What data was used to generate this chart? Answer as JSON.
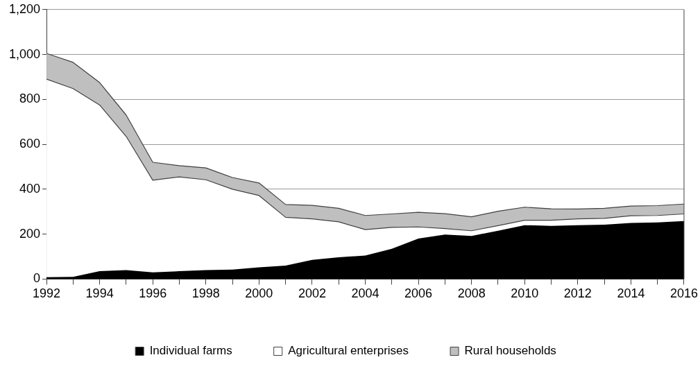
{
  "chart_data": {
    "type": "area",
    "stacked": true,
    "x": [
      1992,
      1993,
      1994,
      1995,
      1996,
      1997,
      1998,
      1999,
      2000,
      2001,
      2002,
      2003,
      2004,
      2005,
      2006,
      2007,
      2008,
      2009,
      2010,
      2011,
      2012,
      2013,
      2014,
      2015,
      2016
    ],
    "series": [
      {
        "name": "Individual farms",
        "color": "#000000",
        "values": [
          8,
          10,
          35,
          40,
          30,
          35,
          40,
          42,
          52,
          60,
          85,
          97,
          105,
          135,
          180,
          198,
          192,
          215,
          240,
          237,
          240,
          242,
          250,
          252,
          258
        ]
      },
      {
        "name": "Agricultural enterprises",
        "color": "#ffffff",
        "values": [
          882,
          838,
          740,
          595,
          410,
          420,
          402,
          358,
          320,
          215,
          183,
          158,
          115,
          95,
          52,
          27,
          23,
          23,
          22,
          25,
          28,
          28,
          32,
          31,
          32
        ]
      },
      {
        "name": "Rural households",
        "color": "#bfbfbf",
        "values": [
          115,
          117,
          100,
          95,
          80,
          50,
          53,
          52,
          56,
          57,
          60,
          60,
          63,
          60,
          65,
          66,
          62,
          64,
          58,
          51,
          44,
          45,
          43,
          44,
          44
        ]
      }
    ],
    "xlim": [
      1992,
      2016
    ],
    "xticks": [
      1992,
      {
        "value": 1993,
        "label": null
      },
      1994,
      {
        "value": 1995,
        "label": null
      },
      1996,
      {
        "value": 1997,
        "label": null
      },
      1998,
      {
        "value": 1999,
        "label": null
      },
      2000,
      {
        "value": 2001,
        "label": null
      },
      2002,
      {
        "value": 2003,
        "label": null
      },
      2004,
      {
        "value": 2005,
        "label": null
      },
      2006,
      {
        "value": 2007,
        "label": null
      },
      2008,
      {
        "value": 2009,
        "label": null
      },
      2010,
      {
        "value": 2011,
        "label": null
      },
      2012,
      {
        "value": 2013,
        "label": null
      },
      2014,
      {
        "value": 2015,
        "label": null
      },
      2016
    ],
    "ylim": [
      0,
      1200
    ],
    "yticks": [
      {
        "value": 0,
        "label": "0"
      },
      {
        "value": 200,
        "label": "200"
      },
      {
        "value": 400,
        "label": "400"
      },
      {
        "value": 600,
        "label": "600"
      },
      {
        "value": 800,
        "label": "800"
      },
      {
        "value": 1000,
        "label": "1,000"
      },
      {
        "value": 1200,
        "label": "1,200"
      }
    ],
    "grid": "y",
    "legend": "bottom"
  }
}
